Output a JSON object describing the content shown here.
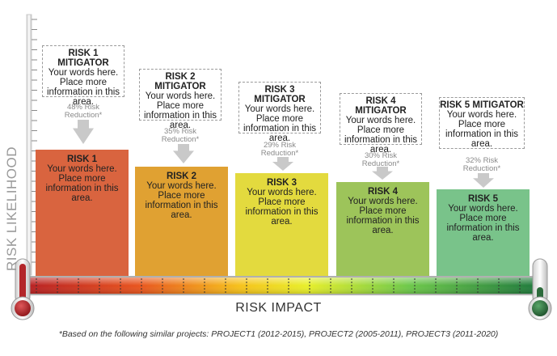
{
  "y_axis_label": "RISK LIKELIHOOD",
  "x_axis_label": "RISK IMPACT",
  "footnote": "*Based on the following similar projects: PROJECT1 (2012-2015), PROJECT2 (2005-2011), PROJECT3 (2011-2020)",
  "colors": {
    "risk1": "#d9643f",
    "risk2": "#e0a132",
    "risk3": "#e3da3e",
    "risk4": "#9dc45a",
    "risk5": "#79c38a",
    "thermometer_hot": "#b3262a",
    "thermometer_cool": "#2d6b3c"
  },
  "risks": [
    {
      "mitigator_title": "RISK 1 MITIGATOR",
      "mitigator_body": "Your words here. Place more information in this area.",
      "reduction_line1": "48% Risk",
      "reduction_line2": "Reduction*",
      "risk_title": "RISK 1",
      "risk_body": "Your words here. Place more information in this area."
    },
    {
      "mitigator_title": "RISK 2 MITIGATOR",
      "mitigator_body": "Your words here. Place more information in this area.",
      "reduction_line1": "35% Risk",
      "reduction_line2": "Reduction*",
      "risk_title": "RISK 2",
      "risk_body": "Your words here. Place more information in this area."
    },
    {
      "mitigator_title": "RISK 3 MITIGATOR",
      "mitigator_body": "Your words here. Place more information in this area.",
      "reduction_line1": "29% Risk",
      "reduction_line2": "Reduction*",
      "risk_title": "RISK 3",
      "risk_body": "Your words here. Place more information in this area."
    },
    {
      "mitigator_title": "RISK 4 MITIGATOR",
      "mitigator_body": "Your words here. Place more information in this area.",
      "reduction_line1": "30% Risk",
      "reduction_line2": "Reduction*",
      "risk_title": "RISK 4",
      "risk_body": "Your words here. Place more information in this area."
    },
    {
      "mitigator_title": "RISK 5 MITIGATOR",
      "mitigator_body": "Your words here. Place more information in this area.",
      "reduction_line1": "32% Risk",
      "reduction_line2": "Reduction*",
      "risk_title": "RISK 5",
      "risk_body": "Your words here. Place more information in this area."
    }
  ]
}
